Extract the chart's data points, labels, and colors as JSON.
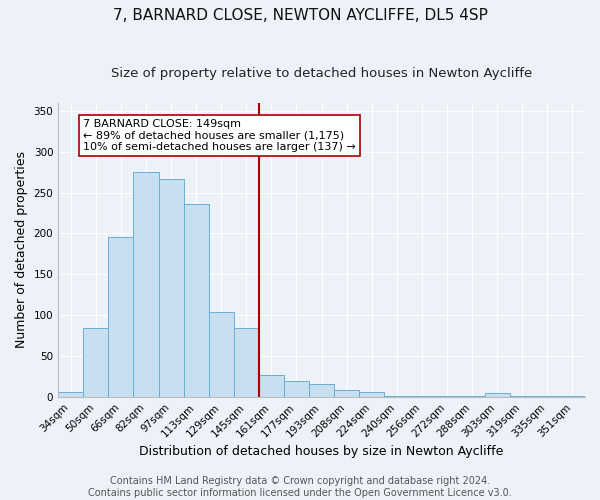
{
  "title": "7, BARNARD CLOSE, NEWTON AYCLIFFE, DL5 4SP",
  "subtitle": "Size of property relative to detached houses in Newton Aycliffe",
  "xlabel": "Distribution of detached houses by size in Newton Aycliffe",
  "ylabel": "Number of detached properties",
  "bar_labels": [
    "34sqm",
    "50sqm",
    "66sqm",
    "82sqm",
    "97sqm",
    "113sqm",
    "129sqm",
    "145sqm",
    "161sqm",
    "177sqm",
    "193sqm",
    "208sqm",
    "224sqm",
    "240sqm",
    "256sqm",
    "272sqm",
    "288sqm",
    "303sqm",
    "319sqm",
    "335sqm",
    "351sqm"
  ],
  "bar_heights": [
    6,
    84,
    196,
    275,
    266,
    236,
    104,
    84,
    27,
    20,
    16,
    9,
    6,
    2,
    2,
    2,
    2,
    5,
    2,
    2,
    2
  ],
  "bar_color": "#c8dff0",
  "bar_edge_color": "#6aaed6",
  "vline_x_index": 7,
  "vline_color": "#aa0000",
  "annotation_title": "7 BARNARD CLOSE: 149sqm",
  "annotation_line1": "← 89% of detached houses are smaller (1,175)",
  "annotation_line2": "10% of semi-detached houses are larger (137) →",
  "annotation_box_color": "#ffffff",
  "annotation_box_edge_color": "#aa0000",
  "ylim": [
    0,
    360
  ],
  "yticks": [
    0,
    50,
    100,
    150,
    200,
    250,
    300,
    350
  ],
  "footer1": "Contains HM Land Registry data © Crown copyright and database right 2024.",
  "footer2": "Contains public sector information licensed under the Open Government Licence v3.0.",
  "background_color": "#edf2f9",
  "grid_color": "#ffffff",
  "title_fontsize": 11,
  "subtitle_fontsize": 9.5,
  "axis_label_fontsize": 9,
  "tick_fontsize": 7.5,
  "annotation_fontsize": 8,
  "footer_fontsize": 7
}
